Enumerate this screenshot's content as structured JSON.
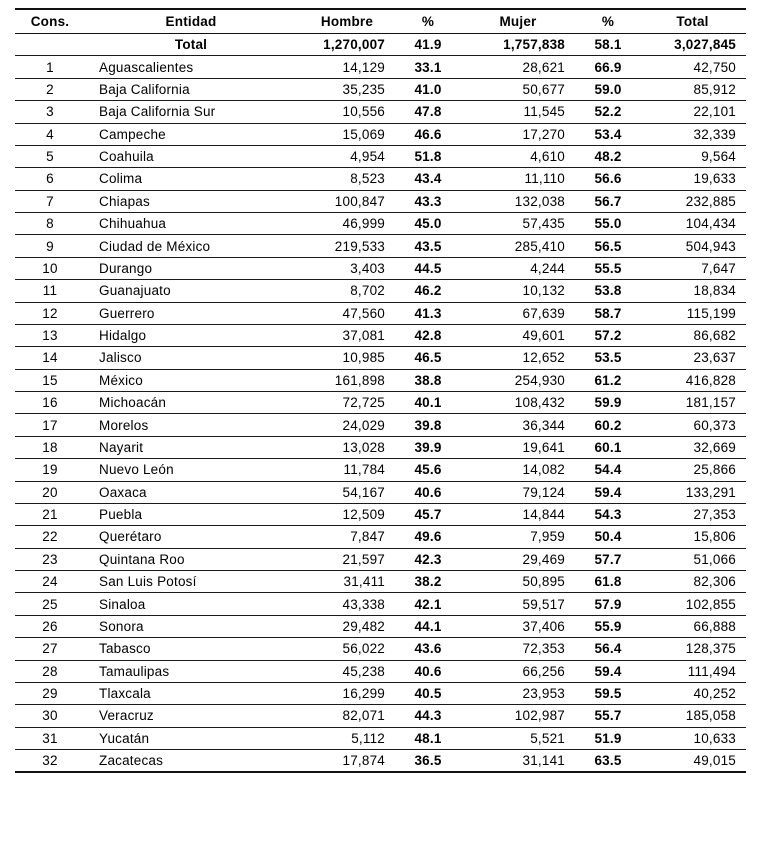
{
  "table": {
    "columns": [
      {
        "key": "cons",
        "label": "Cons."
      },
      {
        "key": "entidad",
        "label": "Entidad"
      },
      {
        "key": "hombre",
        "label": "Hombre"
      },
      {
        "key": "pct_hombre",
        "label": "%"
      },
      {
        "key": "mujer",
        "label": "Mujer"
      },
      {
        "key": "pct_mujer",
        "label": "%"
      },
      {
        "key": "total",
        "label": "Total"
      }
    ],
    "total_row": {
      "cons": "",
      "entidad": "Total",
      "hombre": "1,270,007",
      "pct_hombre": "41.9",
      "mujer": "1,757,838",
      "pct_mujer": "58.1",
      "total": "3,027,845"
    },
    "rows": [
      {
        "cons": "1",
        "entidad": "Aguascalientes",
        "hombre": "14,129",
        "pct_hombre": "33.1",
        "mujer": "28,621",
        "pct_mujer": "66.9",
        "total": "42,750"
      },
      {
        "cons": "2",
        "entidad": "Baja California",
        "hombre": "35,235",
        "pct_hombre": "41.0",
        "mujer": "50,677",
        "pct_mujer": "59.0",
        "total": "85,912"
      },
      {
        "cons": "3",
        "entidad": "Baja California Sur",
        "hombre": "10,556",
        "pct_hombre": "47.8",
        "mujer": "11,545",
        "pct_mujer": "52.2",
        "total": "22,101"
      },
      {
        "cons": "4",
        "entidad": "Campeche",
        "hombre": "15,069",
        "pct_hombre": "46.6",
        "mujer": "17,270",
        "pct_mujer": "53.4",
        "total": "32,339"
      },
      {
        "cons": "5",
        "entidad": "Coahuila",
        "hombre": "4,954",
        "pct_hombre": "51.8",
        "mujer": "4,610",
        "pct_mujer": "48.2",
        "total": "9,564"
      },
      {
        "cons": "6",
        "entidad": "Colima",
        "hombre": "8,523",
        "pct_hombre": "43.4",
        "mujer": "11,110",
        "pct_mujer": "56.6",
        "total": "19,633"
      },
      {
        "cons": "7",
        "entidad": "Chiapas",
        "hombre": "100,847",
        "pct_hombre": "43.3",
        "mujer": "132,038",
        "pct_mujer": "56.7",
        "total": "232,885"
      },
      {
        "cons": "8",
        "entidad": "Chihuahua",
        "hombre": "46,999",
        "pct_hombre": "45.0",
        "mujer": "57,435",
        "pct_mujer": "55.0",
        "total": "104,434"
      },
      {
        "cons": "9",
        "entidad": "Ciudad de México",
        "hombre": "219,533",
        "pct_hombre": "43.5",
        "mujer": "285,410",
        "pct_mujer": "56.5",
        "total": "504,943"
      },
      {
        "cons": "10",
        "entidad": "Durango",
        "hombre": "3,403",
        "pct_hombre": "44.5",
        "mujer": "4,244",
        "pct_mujer": "55.5",
        "total": "7,647"
      },
      {
        "cons": "11",
        "entidad": "Guanajuato",
        "hombre": "8,702",
        "pct_hombre": "46.2",
        "mujer": "10,132",
        "pct_mujer": "53.8",
        "total": "18,834"
      },
      {
        "cons": "12",
        "entidad": "Guerrero",
        "hombre": "47,560",
        "pct_hombre": "41.3",
        "mujer": "67,639",
        "pct_mujer": "58.7",
        "total": "115,199"
      },
      {
        "cons": "13",
        "entidad": "Hidalgo",
        "hombre": "37,081",
        "pct_hombre": "42.8",
        "mujer": "49,601",
        "pct_mujer": "57.2",
        "total": "86,682"
      },
      {
        "cons": "14",
        "entidad": "Jalisco",
        "hombre": "10,985",
        "pct_hombre": "46.5",
        "mujer": "12,652",
        "pct_mujer": "53.5",
        "total": "23,637"
      },
      {
        "cons": "15",
        "entidad": "México",
        "hombre": "161,898",
        "pct_hombre": "38.8",
        "mujer": "254,930",
        "pct_mujer": "61.2",
        "total": "416,828"
      },
      {
        "cons": "16",
        "entidad": "Michoacán",
        "hombre": "72,725",
        "pct_hombre": "40.1",
        "mujer": "108,432",
        "pct_mujer": "59.9",
        "total": "181,157"
      },
      {
        "cons": "17",
        "entidad": "Morelos",
        "hombre": "24,029",
        "pct_hombre": "39.8",
        "mujer": "36,344",
        "pct_mujer": "60.2",
        "total": "60,373"
      },
      {
        "cons": "18",
        "entidad": "Nayarit",
        "hombre": "13,028",
        "pct_hombre": "39.9",
        "mujer": "19,641",
        "pct_mujer": "60.1",
        "total": "32,669"
      },
      {
        "cons": "19",
        "entidad": "Nuevo León",
        "hombre": "11,784",
        "pct_hombre": "45.6",
        "mujer": "14,082",
        "pct_mujer": "54.4",
        "total": "25,866"
      },
      {
        "cons": "20",
        "entidad": "Oaxaca",
        "hombre": "54,167",
        "pct_hombre": "40.6",
        "mujer": "79,124",
        "pct_mujer": "59.4",
        "total": "133,291"
      },
      {
        "cons": "21",
        "entidad": "Puebla",
        "hombre": "12,509",
        "pct_hombre": "45.7",
        "mujer": "14,844",
        "pct_mujer": "54.3",
        "total": "27,353"
      },
      {
        "cons": "22",
        "entidad": "Querétaro",
        "hombre": "7,847",
        "pct_hombre": "49.6",
        "mujer": "7,959",
        "pct_mujer": "50.4",
        "total": "15,806"
      },
      {
        "cons": "23",
        "entidad": "Quintana Roo",
        "hombre": "21,597",
        "pct_hombre": "42.3",
        "mujer": "29,469",
        "pct_mujer": "57.7",
        "total": "51,066"
      },
      {
        "cons": "24",
        "entidad": "San Luis Potosí",
        "hombre": "31,411",
        "pct_hombre": "38.2",
        "mujer": "50,895",
        "pct_mujer": "61.8",
        "total": "82,306"
      },
      {
        "cons": "25",
        "entidad": "Sinaloa",
        "hombre": "43,338",
        "pct_hombre": "42.1",
        "mujer": "59,517",
        "pct_mujer": "57.9",
        "total": "102,855"
      },
      {
        "cons": "26",
        "entidad": "Sonora",
        "hombre": "29,482",
        "pct_hombre": "44.1",
        "mujer": "37,406",
        "pct_mujer": "55.9",
        "total": "66,888"
      },
      {
        "cons": "27",
        "entidad": "Tabasco",
        "hombre": "56,022",
        "pct_hombre": "43.6",
        "mujer": "72,353",
        "pct_mujer": "56.4",
        "total": "128,375"
      },
      {
        "cons": "28",
        "entidad": "Tamaulipas",
        "hombre": "45,238",
        "pct_hombre": "40.6",
        "mujer": "66,256",
        "pct_mujer": "59.4",
        "total": "111,494"
      },
      {
        "cons": "29",
        "entidad": "Tlaxcala",
        "hombre": "16,299",
        "pct_hombre": "40.5",
        "mujer": "23,953",
        "pct_mujer": "59.5",
        "total": "40,252"
      },
      {
        "cons": "30",
        "entidad": "Veracruz",
        "hombre": "82,071",
        "pct_hombre": "44.3",
        "mujer": "102,987",
        "pct_mujer": "55.7",
        "total": "185,058"
      },
      {
        "cons": "31",
        "entidad": "Yucatán",
        "hombre": "5,112",
        "pct_hombre": "48.1",
        "mujer": "5,521",
        "pct_mujer": "51.9",
        "total": "10,633"
      },
      {
        "cons": "32",
        "entidad": "Zacatecas",
        "hombre": "17,874",
        "pct_hombre": "36.5",
        "mujer": "31,141",
        "pct_mujer": "63.5",
        "total": "49,015"
      }
    ]
  }
}
